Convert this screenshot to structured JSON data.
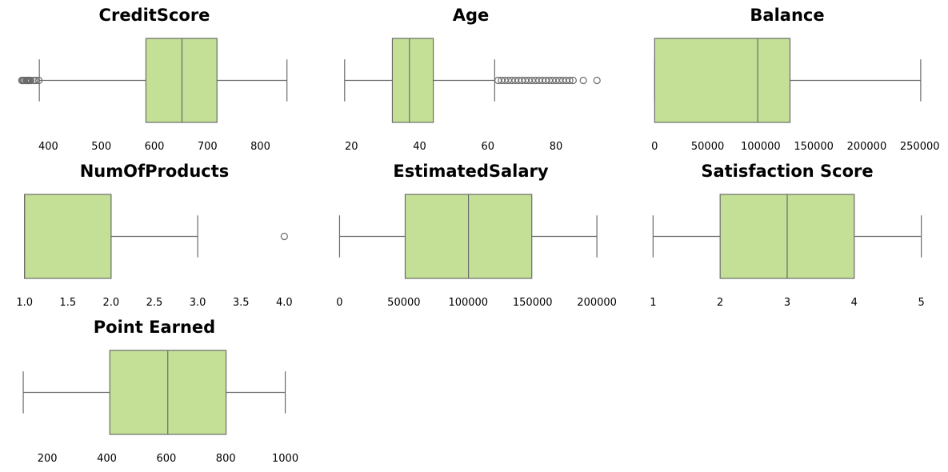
{
  "chart_data": {
    "type": "box",
    "layout": "grid 3x3",
    "colors": {
      "box_fill": "#c3e096",
      "line": "#6b6b6b",
      "flier": "#6b6b6b"
    },
    "panels": [
      {
        "title": "CreditScore",
        "xlim": [
          342,
          858
        ],
        "ticks": [
          400,
          500,
          600,
          700,
          800
        ],
        "tick_labels": [
          "400",
          "500",
          "600",
          "700",
          "800"
        ],
        "box": {
          "whislo": 383,
          "q1": 584,
          "med": 652,
          "q3": 718,
          "whishi": 850
        },
        "fliers": [
          350,
          351,
          353,
          355,
          358,
          359,
          360,
          362,
          363,
          365,
          367,
          373,
          376,
          382
        ]
      },
      {
        "title": "Age",
        "xlim": [
          15,
          95
        ],
        "ticks": [
          20,
          40,
          60,
          80
        ],
        "tick_labels": [
          "20",
          "40",
          "60",
          "80"
        ],
        "box": {
          "whislo": 18,
          "q1": 32,
          "med": 37,
          "q3": 44,
          "whishi": 62
        },
        "fliers": [
          63,
          64,
          65,
          66,
          67,
          68,
          69,
          70,
          71,
          72,
          73,
          74,
          75,
          76,
          77,
          78,
          79,
          80,
          81,
          82,
          83,
          84,
          85,
          88,
          92
        ]
      },
      {
        "title": "Balance",
        "xlim": [
          -4000,
          254000
        ],
        "ticks": [
          0,
          50000,
          100000,
          150000,
          200000,
          250000
        ],
        "tick_labels": [
          "0",
          "50000",
          "100000",
          "150000",
          "200000",
          "250000"
        ],
        "box": {
          "whislo": 0,
          "q1": 0,
          "med": 97199,
          "q3": 127644,
          "whishi": 250898
        },
        "fliers": []
      },
      {
        "title": "NumOfProducts",
        "xlim": [
          0.92,
          4.08
        ],
        "ticks": [
          1.0,
          1.5,
          2.0,
          2.5,
          3.0,
          3.5,
          4.0
        ],
        "tick_labels": [
          "1.0",
          "1.5",
          "2.0",
          "2.5",
          "3.0",
          "3.5",
          "4.0"
        ],
        "box": {
          "whislo": 1,
          "q1": 1,
          "med": 1,
          "q3": 2,
          "whishi": 3
        },
        "fliers": [
          4
        ]
      },
      {
        "title": "EstimatedSalary",
        "xlim": [
          -4000,
          208000
        ],
        "ticks": [
          0,
          50000,
          100000,
          150000,
          200000
        ],
        "tick_labels": [
          "0",
          "50000",
          "100000",
          "150000",
          "200000"
        ],
        "box": {
          "whislo": 11,
          "q1": 51002,
          "med": 100194,
          "q3": 149388,
          "whishi": 199992
        },
        "fliers": []
      },
      {
        "title": "Satisfaction Score",
        "xlim": [
          0.96,
          5.04
        ],
        "ticks": [
          1,
          2,
          3,
          4,
          5
        ],
        "tick_labels": [
          "1",
          "2",
          "3",
          "4",
          "5"
        ],
        "box": {
          "whislo": 1,
          "q1": 2,
          "med": 3,
          "q3": 4,
          "whishi": 5
        },
        "fliers": []
      },
      {
        "title": "Point Earned",
        "xlim": [
          100,
          1020
        ],
        "ticks": [
          200,
          400,
          600,
          800,
          1000
        ],
        "tick_labels": [
          "200",
          "400",
          "600",
          "800",
          "1000"
        ],
        "box": {
          "whislo": 119,
          "q1": 410,
          "med": 605,
          "q3": 801,
          "whishi": 1000
        },
        "fliers": []
      }
    ]
  }
}
